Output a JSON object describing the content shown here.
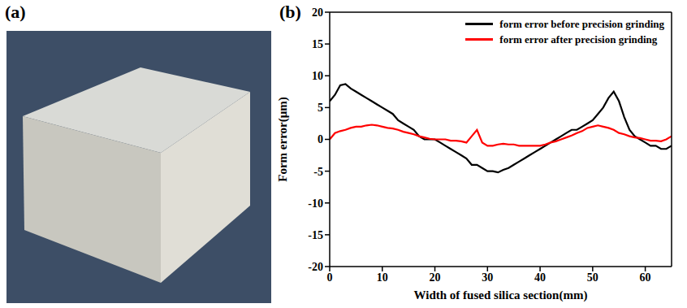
{
  "panel_labels": [
    "(a)",
    "(b)"
  ],
  "chart_data": {
    "type": "line",
    "x_label": "Width of fused silica section(mm)",
    "y_label": "Form error(μm)",
    "x": [
      0,
      1,
      2,
      3,
      4,
      5,
      6,
      7,
      8,
      9,
      10,
      11,
      12,
      13,
      14,
      15,
      16,
      17,
      18,
      19,
      20,
      21,
      22,
      23,
      24,
      25,
      26,
      27,
      28,
      29,
      30,
      31,
      32,
      33,
      34,
      35,
      36,
      37,
      38,
      39,
      40,
      41,
      42,
      43,
      44,
      45,
      46,
      47,
      48,
      49,
      50,
      51,
      52,
      53,
      54,
      55,
      56,
      57,
      58,
      59,
      60,
      61,
      62,
      63,
      64,
      65
    ],
    "series": [
      {
        "name": "form error before precision grinding",
        "color": "#000000",
        "values": [
          6,
          7,
          8.5,
          8.7,
          8,
          7.5,
          7,
          6.5,
          6,
          5.5,
          5,
          4.5,
          4,
          3,
          2.5,
          2,
          1.5,
          0.5,
          0,
          0,
          0,
          -0.5,
          -1,
          -1.5,
          -2,
          -2.5,
          -3,
          -4,
          -4,
          -4.5,
          -5,
          -5,
          -5.2,
          -4.8,
          -4.5,
          -4,
          -3.5,
          -3,
          -2.5,
          -2,
          -1.5,
          -1,
          -0.5,
          0,
          0.5,
          1,
          1.5,
          1.5,
          2,
          2.5,
          3,
          4,
          5,
          6.5,
          7.5,
          6,
          3.5,
          1.5,
          0.5,
          0,
          -0.5,
          -1,
          -1,
          -1.5,
          -1.5,
          -1
        ]
      },
      {
        "name": "form error after precision grinding",
        "color": "#ff0000",
        "values": [
          0,
          1,
          1.3,
          1.5,
          1.8,
          2,
          2,
          2.2,
          2.3,
          2.2,
          2,
          1.8,
          1.7,
          1.5,
          1.2,
          1,
          0.8,
          0.5,
          0.3,
          0.1,
          0,
          0,
          0,
          -0.2,
          -0.2,
          -0.3,
          -0.5,
          0.5,
          1.5,
          -0.5,
          -1,
          -1,
          -0.8,
          -0.7,
          -0.8,
          -0.8,
          -1,
          -1,
          -1,
          -1,
          -1,
          -0.8,
          -0.5,
          -0.3,
          0,
          0.3,
          0.6,
          1,
          1.3,
          1.8,
          2,
          2.2,
          2,
          1.8,
          1.5,
          1,
          0.8,
          0.5,
          0.3,
          0.2,
          0,
          -0.2,
          -0.2,
          -0.3,
          0,
          0.5
        ]
      }
    ],
    "xlim": [
      0,
      65
    ],
    "xticks": [
      0,
      10,
      20,
      30,
      40,
      50,
      60
    ],
    "ylim": [
      -20,
      20
    ],
    "yticks": [
      -20,
      -15,
      -10,
      -5,
      0,
      5,
      10,
      15,
      20
    ],
    "legend": "upper right",
    "grid": false
  }
}
